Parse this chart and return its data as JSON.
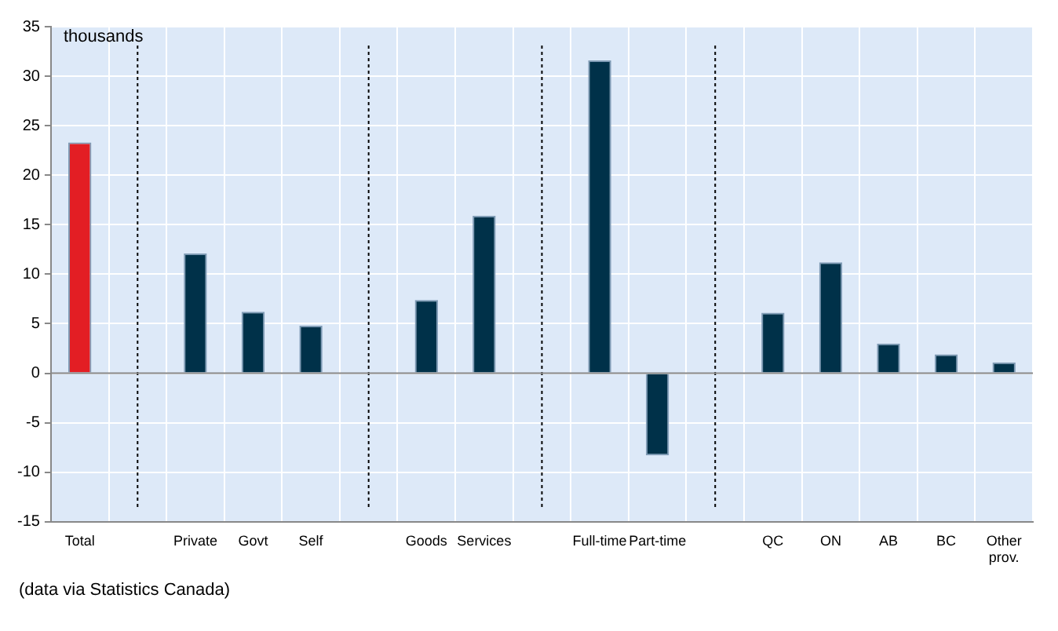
{
  "chart_data": {
    "type": "bar",
    "ylabel": "thousands",
    "categories": [
      "Total",
      null,
      "Private",
      "Govt",
      "Self",
      null,
      "Goods",
      "Services",
      null,
      "Full-time",
      "Part-time",
      null,
      "QC",
      "ON",
      "AB",
      "BC",
      "Other prov."
    ],
    "values": [
      23.3,
      null,
      12.1,
      6.2,
      4.8,
      null,
      7.4,
      15.9,
      null,
      31.6,
      -8.3,
      null,
      6.1,
      11.2,
      3.0,
      1.9,
      1.1
    ],
    "colors": [
      "#e31e24",
      null,
      "#003149",
      "#003149",
      "#003149",
      null,
      "#003149",
      "#003149",
      null,
      "#003149",
      "#003149",
      null,
      "#003149",
      "#003149",
      "#003149",
      "#003149",
      "#003149"
    ],
    "ylim": [
      -15,
      35
    ],
    "yticks": [
      -15,
      -10,
      -5,
      0,
      5,
      10,
      15,
      20,
      25,
      30,
      35
    ],
    "grid": true,
    "annotations": [
      "(data via Statistics Canada)"
    ]
  }
}
